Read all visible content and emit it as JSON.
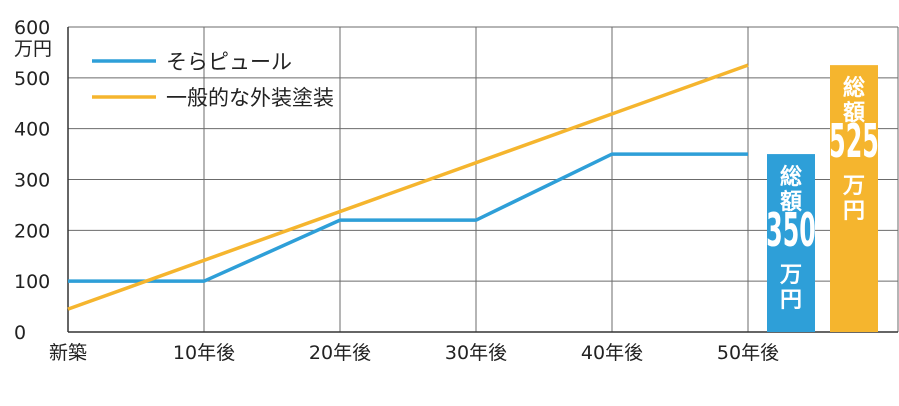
{
  "chart_data": {
    "type": "line",
    "categories": [
      "新築",
      "10年後",
      "20年後",
      "30年後",
      "40年後",
      "50年後"
    ],
    "x": [
      0,
      10,
      20,
      30,
      40,
      50
    ],
    "yticks": [
      "0",
      "100",
      "200",
      "300",
      "400",
      "500",
      "600"
    ],
    "yunit": "万円",
    "ylim": [
      0,
      600
    ],
    "grid": true,
    "legend_position": "top-left",
    "series": [
      {
        "name": "そらピュール",
        "color": "#2e9fd8",
        "x": [
          0,
          10,
          20,
          30,
          40,
          50
        ],
        "values": [
          100,
          100,
          220,
          220,
          350,
          350
        ]
      },
      {
        "name": "一般的な外装塗装",
        "color": "#f5b52e",
        "x": [
          0,
          50
        ],
        "values": [
          45,
          525
        ]
      }
    ],
    "totals": [
      {
        "label": "総額",
        "amount": "350",
        "unit": "万円",
        "value": 350,
        "color": "#2e9fd8"
      },
      {
        "label": "総額",
        "amount": "525",
        "unit": "万円",
        "value": 525,
        "color": "#f5b52e"
      }
    ]
  }
}
